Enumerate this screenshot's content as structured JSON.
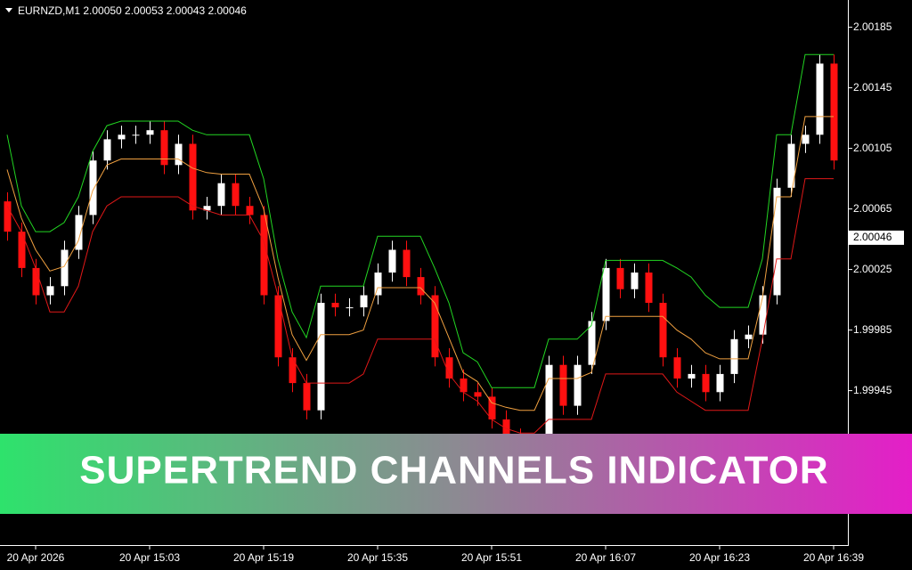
{
  "chart_data": {
    "type": "candlestick",
    "header": "EURNZD,M1  2.00050 2.00053 2.00043 2.00046",
    "categories": [
      null,
      null,
      "20 Apr 2026",
      null,
      null,
      null,
      null,
      null,
      null,
      null,
      "20 Apr 15:03",
      null,
      null,
      null,
      null,
      null,
      null,
      null,
      "20 Apr 15:19",
      null,
      null,
      null,
      null,
      null,
      null,
      null,
      "20 Apr 15:35",
      null,
      null,
      null,
      null,
      null,
      null,
      null,
      "20 Apr 15:51",
      null,
      null,
      null,
      null,
      null,
      null,
      null,
      "20 Apr 16:07",
      null,
      null,
      null,
      null,
      null,
      null,
      null,
      "20 Apr 16:23",
      null,
      null,
      null,
      null,
      null,
      null,
      null,
      "20 Apr 16:39"
    ],
    "open": [
      2.0007,
      2.0005,
      2.00026,
      2.00008,
      2.00014,
      2.00038,
      2.00061,
      2.00097,
      2.00111,
      2.00114,
      2.00114,
      2.00117,
      2.00094,
      2.00108,
      2.00064,
      2.00067,
      2.00082,
      2.00067,
      2.00061,
      2.00008,
      1.99967,
      1.9995,
      1.99932,
      2.00003,
      2.0,
      2.0,
      2.00008,
      2.00023,
      2.00038,
      2.0002,
      2.00008,
      1.99967,
      1.99953,
      1.99944,
      1.99941,
      1.99926,
      1.99914,
      1.99908,
      1.99908,
      1.99962,
      1.99935,
      1.99962,
      1.99991,
      2.00026,
      2.00012,
      2.00023,
      2.00003,
      1.99967,
      1.99953,
      1.99956,
      1.99944,
      1.99956,
      1.99979,
      1.99982,
      2.00008,
      2.00079,
      2.00108,
      2.00114,
      2.00161
    ],
    "high": [
      2.00076,
      2.00056,
      2.00032,
      2.0002,
      2.00044,
      2.00067,
      2.00103,
      2.00117,
      2.0012,
      2.0012,
      2.00123,
      2.00123,
      2.00114,
      2.00114,
      2.00073,
      2.00088,
      2.00088,
      2.00073,
      2.00067,
      2.00014,
      1.99973,
      1.99956,
      2.00009,
      2.00009,
      2.00006,
      2.00014,
      2.00029,
      2.00044,
      2.00044,
      2.00026,
      2.00014,
      1.99973,
      1.99959,
      1.9995,
      1.99947,
      1.99932,
      1.9992,
      1.99914,
      1.99968,
      1.99968,
      1.99968,
      1.99997,
      2.00032,
      2.00032,
      2.00029,
      2.00029,
      2.00009,
      1.99973,
      1.99962,
      1.99962,
      1.99962,
      1.99985,
      1.99988,
      2.00014,
      2.00085,
      2.00114,
      2.0012,
      2.00167,
      2.00167
    ],
    "low": [
      2.00044,
      2.0002,
      2.00002,
      2.00002,
      2.00008,
      2.00032,
      2.00055,
      2.00091,
      2.00105,
      2.00108,
      2.00108,
      2.00088,
      2.00088,
      2.00058,
      2.00058,
      2.00061,
      2.00061,
      2.00055,
      2.00002,
      1.99961,
      1.99944,
      1.99926,
      1.99926,
      1.99994,
      1.99994,
      1.99994,
      2.00002,
      2.00017,
      2.00014,
      2.00002,
      1.99961,
      1.99947,
      1.99938,
      1.99935,
      1.9992,
      1.99908,
      1.99902,
      1.99902,
      1.99902,
      1.99929,
      1.99929,
      1.99956,
      1.99985,
      2.00006,
      2.00006,
      1.99997,
      1.99961,
      1.99947,
      1.99947,
      1.99938,
      1.99938,
      1.9995,
      1.99973,
      1.99976,
      2.00002,
      2.00073,
      2.00102,
      2.00108,
      2.00091
    ],
    "close": [
      2.0005,
      2.00026,
      2.00008,
      2.00014,
      2.00038,
      2.00061,
      2.00097,
      2.00111,
      2.00114,
      2.00114,
      2.00117,
      2.00094,
      2.00108,
      2.00064,
      2.00067,
      2.00082,
      2.00067,
      2.00061,
      2.00008,
      1.99967,
      1.9995,
      1.99932,
      2.00003,
      2.0,
      2.0,
      2.00008,
      2.00023,
      2.00038,
      2.0002,
      2.00008,
      1.99967,
      1.99953,
      1.99944,
      1.99941,
      1.99926,
      1.99914,
      1.99908,
      1.99908,
      1.99962,
      1.99935,
      1.99962,
      1.99991,
      2.00026,
      2.00012,
      2.00023,
      2.00003,
      1.99967,
      1.99953,
      1.99956,
      1.99944,
      1.99956,
      1.99979,
      1.99982,
      2.00008,
      2.00079,
      2.00108,
      2.00114,
      2.00161,
      2.00097
    ],
    "up_color": "#ffffff",
    "down_color": "#ff1010",
    "series": [
      {
        "color": "#22d622",
        "values": [
          2.00114,
          2.00067,
          2.0005,
          2.0005,
          2.00056,
          2.00073,
          2.00103,
          2.0012,
          2.00123,
          2.00123,
          2.00123,
          2.00123,
          2.00123,
          2.00117,
          2.00114,
          2.00114,
          2.00114,
          2.00114,
          2.00085,
          2.00032,
          1.99997,
          1.9998,
          2.00014,
          2.00014,
          2.00014,
          2.00014,
          2.00047,
          2.00047,
          2.00047,
          2.00047,
          2.00026,
          2.00003,
          1.9997,
          1.99964,
          1.99947,
          1.99947,
          1.99947,
          1.99947,
          1.99979,
          1.99979,
          1.99979,
          1.99988,
          2.00031,
          2.00031,
          2.00031,
          2.00031,
          2.00031,
          2.00026,
          2.0002,
          2.00008,
          2.0,
          2.0,
          2.0,
          2.00032,
          2.00114,
          2.00114,
          2.00167,
          2.00167,
          2.00167
        ]
      },
      {
        "color": "#f0a040",
        "values": [
          2.00091,
          2.00059,
          2.00038,
          2.00024,
          2.00027,
          2.00044,
          2.00077,
          2.00094,
          2.00098,
          2.00098,
          2.00098,
          2.00098,
          2.00098,
          2.00092,
          2.00089,
          2.00088,
          2.00088,
          2.00088,
          2.00065,
          2.0002,
          1.99982,
          1.99965,
          1.99982,
          1.99982,
          1.99982,
          1.99985,
          2.00013,
          2.00013,
          2.00013,
          2.00013,
          2.00003,
          1.9998,
          1.99957,
          1.99951,
          1.99937,
          1.99934,
          1.99932,
          1.99932,
          1.99953,
          1.99953,
          1.99953,
          1.99957,
          1.99994,
          1.99994,
          1.99994,
          1.99994,
          1.99994,
          1.99985,
          1.99979,
          1.9997,
          1.99966,
          1.99966,
          1.99966,
          2.00006,
          2.00073,
          2.00073,
          2.00126,
          2.00126,
          2.00126
        ]
      },
      {
        "color": "#e01818",
        "values": [
          2.00067,
          2.0005,
          2.00026,
          1.99997,
          1.99997,
          2.00014,
          2.0005,
          2.00067,
          2.00073,
          2.00073,
          2.00073,
          2.00073,
          2.00073,
          2.00067,
          2.00064,
          2.00061,
          2.00061,
          2.00061,
          2.00044,
          2.00008,
          1.99967,
          1.9995,
          1.9995,
          1.9995,
          1.9995,
          1.99956,
          1.99979,
          1.99979,
          1.99979,
          1.99979,
          1.99979,
          1.99956,
          1.99944,
          1.99938,
          1.99926,
          1.9992,
          1.99917,
          1.99917,
          1.99926,
          1.99926,
          1.99926,
          1.99926,
          1.99956,
          1.99956,
          1.99956,
          1.99956,
          1.99956,
          1.99944,
          1.99938,
          1.99932,
          1.99932,
          1.99932,
          1.99932,
          1.99979,
          2.00032,
          2.00032,
          2.00085,
          2.00085,
          2.00085
        ]
      }
    ],
    "ylim": [
      1.99843,
      2.00203
    ],
    "yticks": [
      2.00185,
      2.00145,
      2.00105,
      2.00065,
      2.00025,
      1.99985,
      1.99945
    ],
    "current_price": 2.00046
  },
  "banner": {
    "title": "SUPERTREND CHANNELS INDICATOR"
  }
}
